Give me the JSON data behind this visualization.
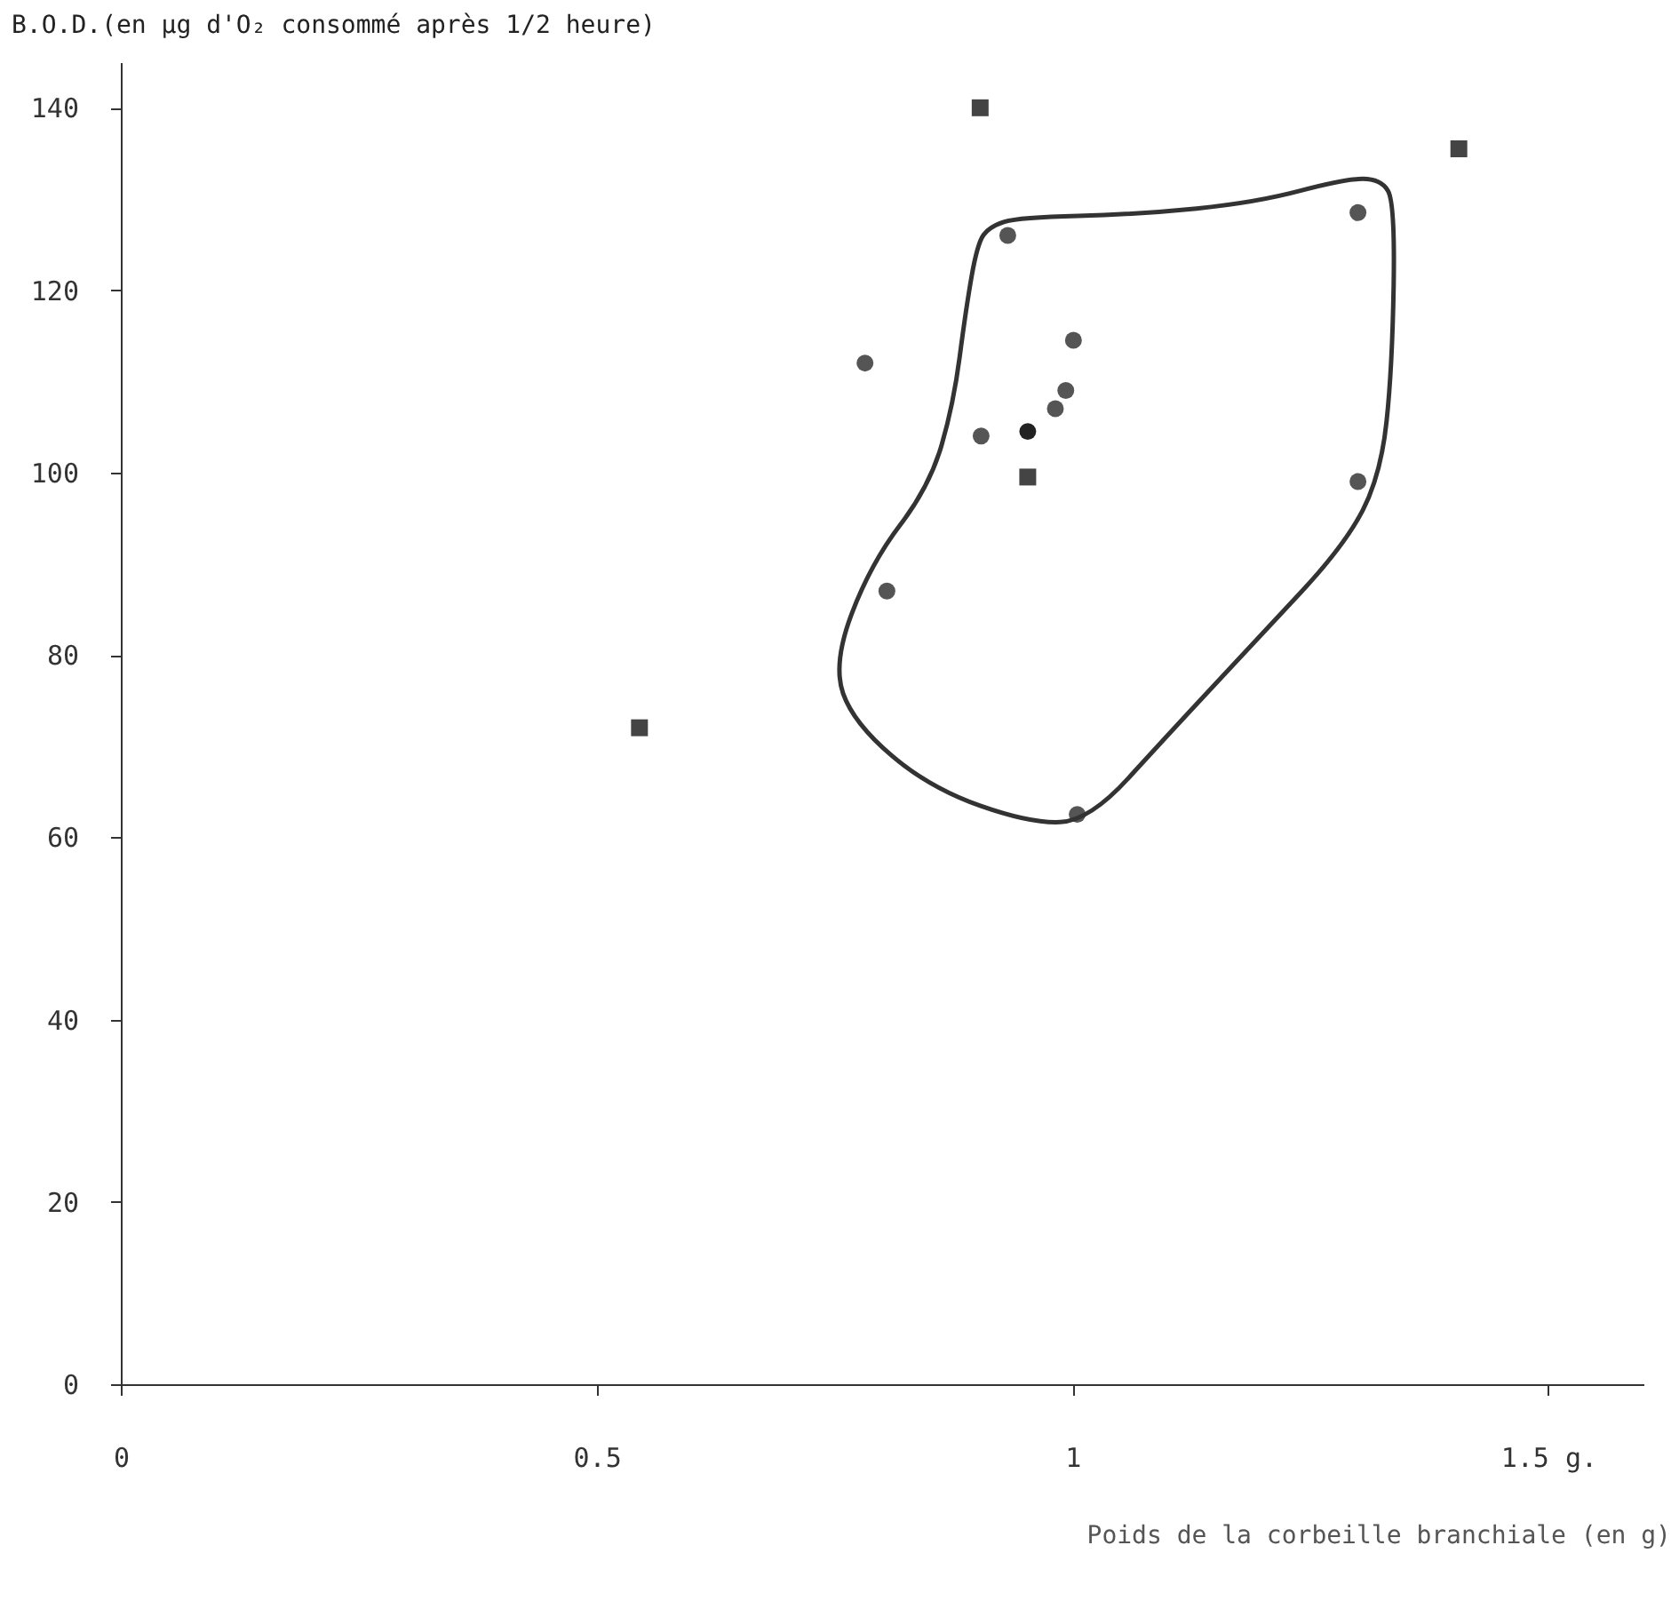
{
  "chart_data": {
    "type": "scatter",
    "ylabel": "B.O.D.(en µg d'O₂ consommé après 1/2 heure)",
    "xlabel": "Poids de la corbeille branchiale (en g)",
    "xlim": [
      0,
      1.6
    ],
    "xticks": [
      0,
      0.5,
      1,
      {
        "value": 1.5,
        "label": "1.5 g."
      }
    ],
    "ylim": [
      0,
      145
    ],
    "yticks": [
      0,
      20,
      40,
      60,
      80,
      100,
      120,
      140
    ],
    "grid": false,
    "series": [
      {
        "color": "#555555",
        "marker": "circle",
        "x": [
          0.932,
          0.782,
          1.001,
          0.993,
          0.982,
          0.904,
          0.805,
          1.005,
          1.3,
          1.3
        ],
        "values": [
          126,
          112,
          114.5,
          109,
          107,
          104,
          87,
          62.5,
          128.5,
          99
        ]
      },
      {
        "color": "#222222",
        "marker": "circle",
        "x": [
          0.953
        ],
        "values": [
          104.5
        ]
      },
      {
        "color": "#444444",
        "marker": "square",
        "x": [
          0.903,
          1.406,
          0.953,
          0.545
        ],
        "values": [
          140,
          135.5,
          99.5,
          72
        ]
      }
    ]
  }
}
